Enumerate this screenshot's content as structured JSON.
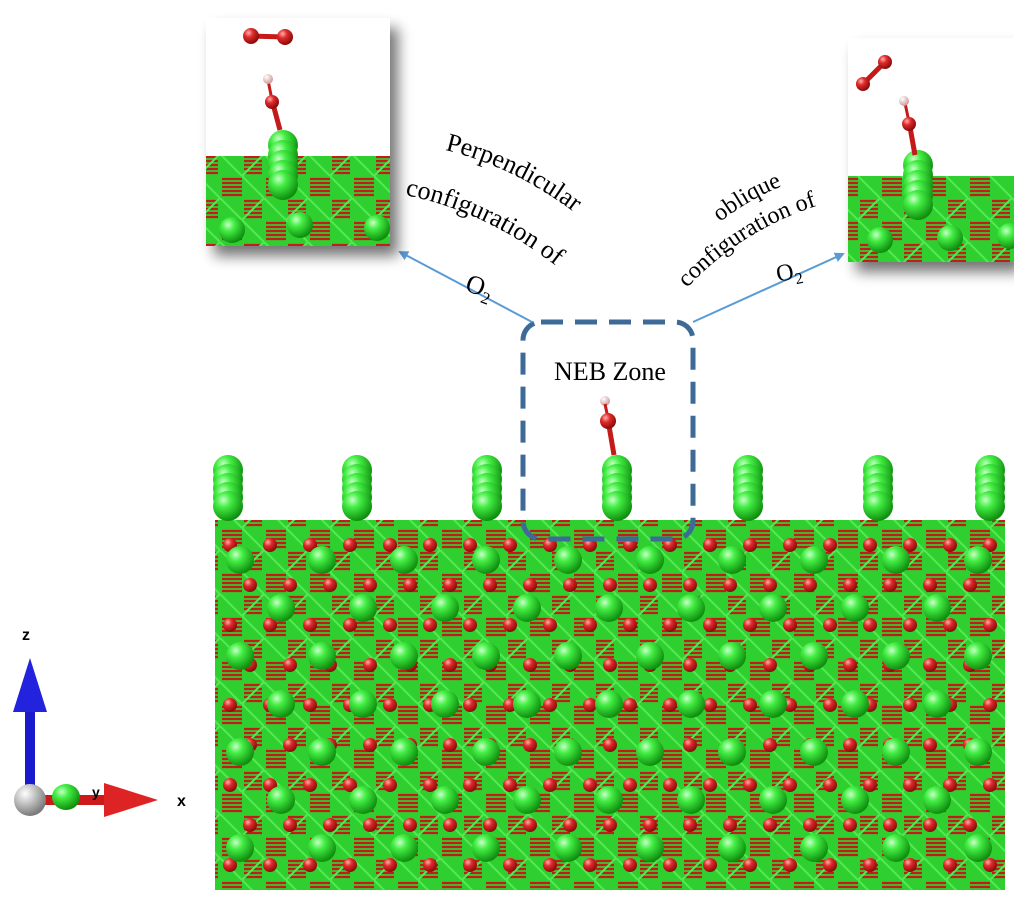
{
  "zone_label": "NEB Zone",
  "left_caption": {
    "line1": "Perpendicular",
    "line2": "configuration of",
    "line3_main": "O",
    "line3_sub": "2"
  },
  "right_caption": {
    "line1": "oblique",
    "line2": "configuration of",
    "line3_main": "O",
    "line3_sub": "2"
  },
  "axes": {
    "z": "z",
    "y": "y",
    "x": "x"
  },
  "colors": {
    "ca_atom": "#22cc22",
    "o_atom": "#d42020",
    "h_atom": "#f5d5d5",
    "arrow": "#5b9bd5",
    "zone_border": "#3d6a97",
    "axis_z": "#1a1acc",
    "axis_x": "#cc1a1a",
    "axis_y": "#22cc22",
    "origin": "#b0b0b0"
  }
}
